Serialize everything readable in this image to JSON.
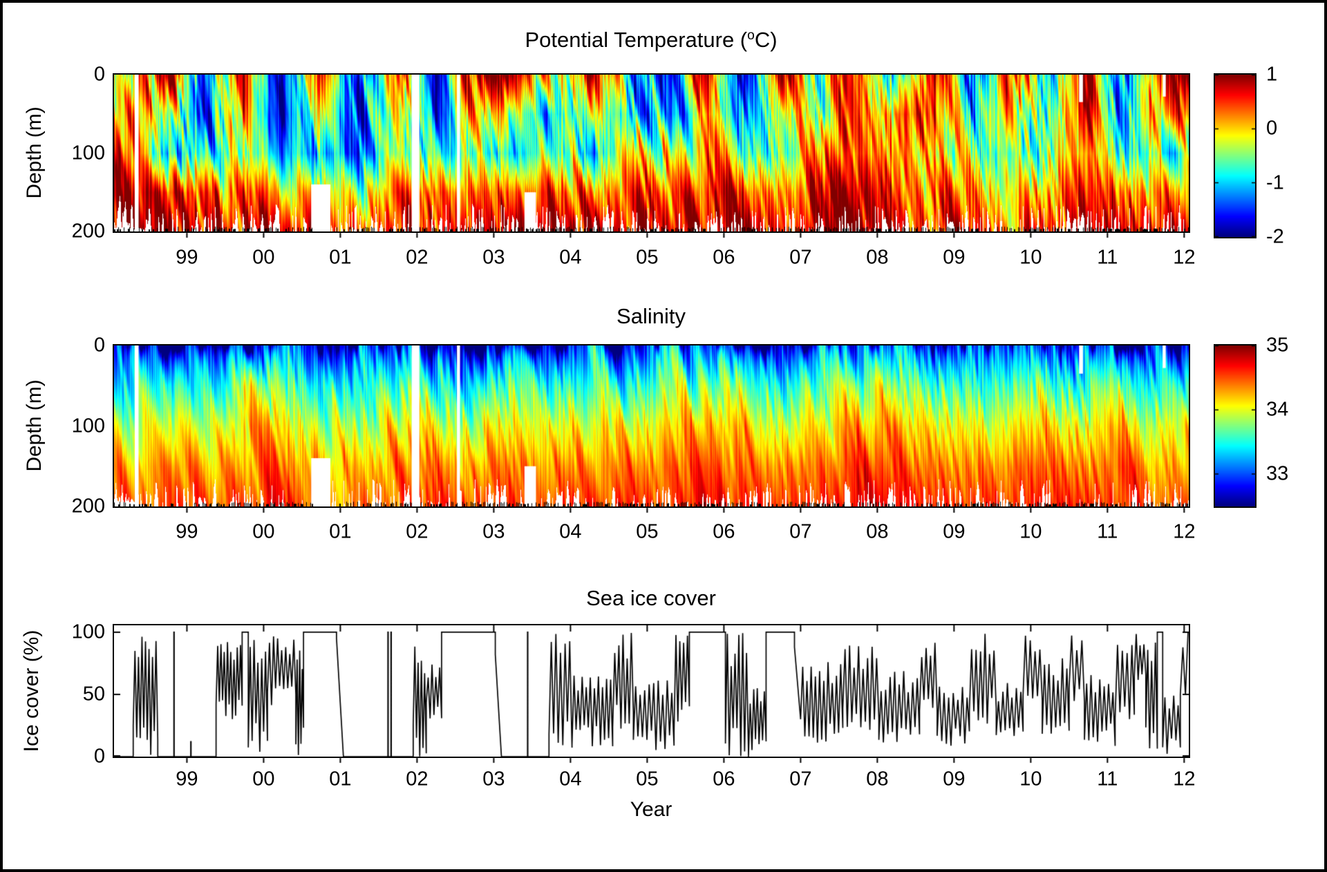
{
  "figure": {
    "background": "#ffffff",
    "frame_color": "#000000",
    "text_color": "#000000"
  },
  "chart_data": [
    {
      "id": "potential-temperature",
      "type": "heatmap",
      "title": {
        "pre": "Potential Temperature (",
        "sup": "o",
        "post": "C)"
      },
      "ylabel": "Depth (m)",
      "x_range": [
        1998.05,
        2012.06
      ],
      "ylim": [
        0,
        200
      ],
      "yticks": {
        "values": [
          0,
          100,
          200
        ],
        "labels": [
          "0",
          "100",
          "200"
        ]
      },
      "xticks": {
        "values": [
          1999,
          2000,
          2001,
          2002,
          2003,
          2004,
          2005,
          2006,
          2007,
          2008,
          2009,
          2010,
          2011,
          2012
        ],
        "labels": [
          "99",
          "00",
          "01",
          "02",
          "03",
          "04",
          "05",
          "06",
          "07",
          "08",
          "09",
          "10",
          "11",
          "12"
        ]
      },
      "colormap": "jet",
      "clim": [
        -2,
        1
      ],
      "colorbar_ticks": {
        "values": [
          1,
          0,
          -1,
          -2
        ],
        "labels": [
          "1",
          "0",
          "-1",
          "-2"
        ]
      },
      "grid": {
        "depths": [
          0,
          50,
          100,
          150,
          200
        ],
        "times": [
          1998.25,
          1998.75,
          1999.25,
          1999.75,
          2000.25,
          2000.75,
          2001.25,
          2001.75,
          2002.25,
          2002.75,
          2003.25,
          2003.75,
          2004.25,
          2004.75,
          2005.25,
          2005.75,
          2006.25,
          2006.75,
          2007.25,
          2007.75,
          2008.25,
          2008.75,
          2009.25,
          2009.75,
          2010.25,
          2010.75,
          2011.25,
          2011.75
        ],
        "values": [
          [
            -0.5,
            0.8,
            -1.7,
            0.9,
            -1.8,
            0.8,
            -1.8,
            0.9,
            -1.5,
            0.9,
            1.0,
            -0.5,
            1.0,
            -0.8,
            -1.5,
            0.6,
            -1.5,
            0.8,
            -1.0,
            1.0,
            -1.2,
            0.9,
            -1.5,
            1.0,
            -1.5,
            1.0,
            -1.7,
            1.0
          ],
          [
            0.0,
            -0.5,
            -1.5,
            0.2,
            -1.6,
            0.0,
            -1.7,
            0.3,
            -1.2,
            0.1,
            -0.3,
            -1.2,
            0.2,
            -1.0,
            -1.2,
            -0.2,
            -1.0,
            0.0,
            -0.8,
            0.5,
            0.3,
            0.4,
            -0.8,
            0.3,
            -1.0,
            0.6,
            -1.2,
            0.4
          ],
          [
            0.3,
            -1.2,
            -0.8,
            -0.5,
            -0.9,
            -0.8,
            -1.5,
            -0.2,
            -0.5,
            -0.6,
            -1.0,
            -0.5,
            -0.8,
            0.0,
            -0.3,
            0.2,
            -0.5,
            -0.3,
            0.0,
            0.2,
            0.5,
            -0.2,
            -0.3,
            -0.5,
            -0.5,
            0.0,
            -0.6,
            -0.8
          ],
          [
            0.6,
            0.5,
            0.3,
            0.4,
            0.0,
            0.3,
            -0.5,
            0.5,
            0.6,
            0.4,
            0.2,
            0.5,
            0.3,
            0.6,
            0.5,
            0.7,
            0.4,
            0.5,
            0.6,
            0.7,
            0.6,
            0.3,
            0.2,
            0.0,
            0.2,
            0.4,
            0.3,
            0.2
          ],
          [
            0.8,
            0.8,
            0.7,
            0.8,
            0.7,
            0.8,
            0.3,
            0.6,
            0.9,
            0.9,
            0.8,
            0.9,
            0.9,
            0.9,
            0.9,
            0.9,
            0.8,
            0.8,
            0.9,
            0.9,
            0.7,
            0.6,
            0.5,
            0.4,
            0.6,
            0.7,
            0.7,
            0.8
          ]
        ]
      },
      "gaps": [
        {
          "t1": 1998.32,
          "t2": 1998.37,
          "d1": 0,
          "d2": 200
        },
        {
          "t1": 2000.62,
          "t2": 2000.87,
          "d1": 140,
          "d2": 200
        },
        {
          "t1": 2001.93,
          "t2": 2002.03,
          "d1": 0,
          "d2": 200
        },
        {
          "t1": 2002.52,
          "t2": 2002.56,
          "d1": 0,
          "d2": 200
        },
        {
          "t1": 2003.4,
          "t2": 2003.55,
          "d1": 150,
          "d2": 200
        },
        {
          "t1": 2010.63,
          "t2": 2010.68,
          "d1": 0,
          "d2": 35
        },
        {
          "t1": 2011.72,
          "t2": 2011.76,
          "d1": 0,
          "d2": 28
        }
      ]
    },
    {
      "id": "salinity",
      "type": "heatmap",
      "title": "Salinity",
      "ylabel": "Depth (m)",
      "x_range": [
        1998.05,
        2012.06
      ],
      "ylim": [
        0,
        200
      ],
      "yticks": {
        "values": [
          0,
          100,
          200
        ],
        "labels": [
          "0",
          "100",
          "200"
        ]
      },
      "xticks": {
        "values": [
          1999,
          2000,
          2001,
          2002,
          2003,
          2004,
          2005,
          2006,
          2007,
          2008,
          2009,
          2010,
          2011,
          2012
        ],
        "labels": [
          "99",
          "00",
          "01",
          "02",
          "03",
          "04",
          "05",
          "06",
          "07",
          "08",
          "09",
          "10",
          "11",
          "12"
        ]
      },
      "colormap": "jet",
      "clim": [
        32.5,
        35
      ],
      "colorbar_ticks": {
        "values": [
          35,
          34,
          33
        ],
        "labels": [
          "35",
          "34",
          "33"
        ]
      },
      "grid": {
        "depths": [
          0,
          50,
          100,
          150,
          200
        ],
        "times": [
          1998.25,
          1998.75,
          1999.25,
          1999.75,
          2000.25,
          2000.75,
          2001.25,
          2001.75,
          2002.25,
          2002.75,
          2003.25,
          2003.75,
          2004.25,
          2004.75,
          2005.25,
          2005.75,
          2006.25,
          2006.75,
          2007.25,
          2007.75,
          2008.25,
          2008.75,
          2009.25,
          2009.75,
          2010.25,
          2010.75,
          2011.25,
          2011.75
        ],
        "values": [
          [
            33.2,
            32.6,
            33.4,
            32.8,
            33.5,
            32.7,
            33.3,
            32.9,
            33.2,
            32.6,
            33.4,
            32.8,
            33.3,
            32.9,
            33.4,
            33.0,
            33.3,
            32.8,
            33.2,
            33.0,
            33.4,
            32.9,
            33.3,
            32.8,
            33.2,
            32.9,
            33.3,
            32.8
          ],
          [
            33.6,
            33.4,
            33.6,
            33.8,
            33.9,
            33.5,
            33.6,
            33.6,
            33.7,
            33.4,
            33.8,
            33.5,
            33.7,
            33.6,
            33.8,
            33.7,
            33.8,
            33.5,
            33.7,
            33.8,
            33.9,
            33.6,
            33.7,
            33.5,
            33.7,
            33.6,
            33.8,
            33.5
          ],
          [
            34.0,
            33.9,
            34.0,
            34.2,
            34.2,
            34.0,
            33.9,
            34.1,
            34.1,
            34.0,
            34.1,
            34.0,
            34.1,
            34.1,
            34.2,
            34.2,
            34.2,
            34.0,
            34.1,
            34.2,
            34.3,
            34.1,
            34.1,
            34.0,
            34.1,
            34.1,
            34.2,
            34.0
          ],
          [
            34.3,
            34.3,
            34.3,
            34.4,
            34.4,
            34.4,
            34.2,
            34.4,
            34.4,
            34.4,
            34.4,
            34.3,
            34.4,
            34.4,
            34.5,
            34.5,
            34.4,
            34.4,
            34.4,
            34.5,
            34.5,
            34.4,
            34.4,
            34.4,
            34.4,
            34.4,
            34.5,
            34.3
          ],
          [
            34.5,
            34.5,
            34.5,
            34.6,
            34.6,
            34.5,
            34.4,
            34.5,
            34.6,
            34.6,
            34.6,
            34.5,
            34.6,
            34.6,
            34.6,
            34.7,
            34.6,
            34.6,
            34.6,
            34.7,
            34.7,
            34.6,
            34.6,
            34.6,
            34.6,
            34.6,
            34.6,
            34.5
          ]
        ]
      },
      "gaps": [
        {
          "t1": 1998.32,
          "t2": 1998.37,
          "d1": 0,
          "d2": 200
        },
        {
          "t1": 2000.62,
          "t2": 2000.87,
          "d1": 140,
          "d2": 200
        },
        {
          "t1": 2001.93,
          "t2": 2002.03,
          "d1": 0,
          "d2": 200
        },
        {
          "t1": 2002.52,
          "t2": 2002.56,
          "d1": 0,
          "d2": 200
        },
        {
          "t1": 2003.4,
          "t2": 2003.55,
          "d1": 150,
          "d2": 200
        },
        {
          "t1": 2010.63,
          "t2": 2010.68,
          "d1": 0,
          "d2": 35
        },
        {
          "t1": 2011.72,
          "t2": 2011.76,
          "d1": 0,
          "d2": 28
        }
      ]
    },
    {
      "id": "sea-ice-cover",
      "type": "line",
      "title": "Sea ice cover",
      "ylabel": "Ice cover (%)",
      "xlabel": "Year",
      "x_range": [
        1998.05,
        2012.06
      ],
      "ylim": [
        0,
        105.5
      ],
      "yticks": {
        "values": [
          100,
          50,
          0
        ],
        "labels": [
          "100",
          "50",
          "0"
        ]
      },
      "xticks": {
        "values": [
          1999,
          2000,
          2001,
          2002,
          2003,
          2004,
          2005,
          2006,
          2007,
          2008,
          2009,
          2010,
          2011,
          2012
        ],
        "labels": [
          "99",
          "00",
          "01",
          "02",
          "03",
          "04",
          "05",
          "06",
          "07",
          "08",
          "09",
          "10",
          "11",
          "12"
        ]
      },
      "line_color": "#000000",
      "segments": [
        {
          "k": "flat",
          "a": 1998.055,
          "b": 1998.3,
          "v": 0
        },
        {
          "k": "osc",
          "a": 1998.3,
          "b": 1998.62,
          "min": 0,
          "max": 100,
          "n": 14
        },
        {
          "k": "flat",
          "a": 1998.62,
          "b": 1998.8,
          "v": 0
        },
        {
          "k": "spike",
          "a": 1998.83,
          "v": 100
        },
        {
          "k": "flat",
          "a": 1998.85,
          "b": 1999.03,
          "v": 0
        },
        {
          "k": "spike",
          "a": 1999.05,
          "v": 12
        },
        {
          "k": "flat",
          "a": 1999.07,
          "b": 1999.38,
          "v": 0
        },
        {
          "k": "osc",
          "a": 1999.38,
          "b": 1999.72,
          "min": 25,
          "max": 100,
          "n": 16
        },
        {
          "k": "flat",
          "a": 1999.72,
          "b": 1999.8,
          "v": 100
        },
        {
          "k": "osc",
          "a": 1999.8,
          "b": 2000.05,
          "min": 0,
          "max": 100,
          "n": 10
        },
        {
          "k": "osc",
          "a": 2000.05,
          "b": 2000.42,
          "min": 40,
          "max": 100,
          "n": 14
        },
        {
          "k": "osc",
          "a": 2000.42,
          "b": 2000.52,
          "min": 0,
          "max": 100,
          "n": 6
        },
        {
          "k": "flat",
          "a": 2000.52,
          "b": 2000.95,
          "v": 100
        },
        {
          "k": "ramp",
          "a": 2000.95,
          "b": 2001.04,
          "v1": 95,
          "v2": 0
        },
        {
          "k": "flat",
          "a": 2001.04,
          "b": 2001.6,
          "v": 0
        },
        {
          "k": "spike",
          "a": 2001.62,
          "v": 100
        },
        {
          "k": "spike",
          "a": 2001.66,
          "v": 100
        },
        {
          "k": "flat",
          "a": 2001.68,
          "b": 2001.95,
          "v": 0
        },
        {
          "k": "osc",
          "a": 2001.95,
          "b": 2002.12,
          "min": 0,
          "max": 92,
          "n": 8
        },
        {
          "k": "osc",
          "a": 2002.12,
          "b": 2002.32,
          "min": 30,
          "max": 75,
          "n": 8
        },
        {
          "k": "flat",
          "a": 2002.32,
          "b": 2003.02,
          "v": 100
        },
        {
          "k": "ramp",
          "a": 2003.02,
          "b": 2003.1,
          "v1": 82,
          "v2": 0
        },
        {
          "k": "flat",
          "a": 2003.1,
          "b": 2003.42,
          "v": 0
        },
        {
          "k": "spike",
          "a": 2003.44,
          "v": 100
        },
        {
          "k": "flat",
          "a": 2003.46,
          "b": 2003.72,
          "v": 0
        },
        {
          "k": "osc",
          "a": 2003.72,
          "b": 2004.02,
          "min": 0,
          "max": 100,
          "n": 10
        },
        {
          "k": "osc",
          "a": 2004.02,
          "b": 2004.55,
          "min": 8,
          "max": 70,
          "n": 20
        },
        {
          "k": "osc",
          "a": 2004.55,
          "b": 2004.82,
          "min": 20,
          "max": 100,
          "n": 10
        },
        {
          "k": "osc",
          "a": 2004.82,
          "b": 2005.35,
          "min": 5,
          "max": 62,
          "n": 18
        },
        {
          "k": "osc",
          "a": 2005.35,
          "b": 2005.55,
          "min": 20,
          "max": 100,
          "n": 8
        },
        {
          "k": "flat",
          "a": 2005.55,
          "b": 2006.02,
          "v": 100
        },
        {
          "k": "osc",
          "a": 2006.02,
          "b": 2006.32,
          "min": 0,
          "max": 100,
          "n": 12
        },
        {
          "k": "osc",
          "a": 2006.32,
          "b": 2006.55,
          "min": 0,
          "max": 60,
          "n": 10
        },
        {
          "k": "flat",
          "a": 2006.55,
          "b": 2006.92,
          "v": 100
        },
        {
          "k": "ramp",
          "a": 2006.92,
          "b": 2007.0,
          "v1": 88,
          "v2": 30
        },
        {
          "k": "osc",
          "a": 2007.0,
          "b": 2007.55,
          "min": 10,
          "max": 80,
          "n": 20
        },
        {
          "k": "osc",
          "a": 2007.55,
          "b": 2008.02,
          "min": 20,
          "max": 92,
          "n": 16
        },
        {
          "k": "osc",
          "a": 2008.02,
          "b": 2008.55,
          "min": 8,
          "max": 70,
          "n": 18
        },
        {
          "k": "osc",
          "a": 2008.55,
          "b": 2008.78,
          "min": 30,
          "max": 100,
          "n": 8
        },
        {
          "k": "osc",
          "a": 2008.78,
          "b": 2009.2,
          "min": 8,
          "max": 60,
          "n": 14
        },
        {
          "k": "osc",
          "a": 2009.2,
          "b": 2009.55,
          "min": 25,
          "max": 100,
          "n": 12
        },
        {
          "k": "osc",
          "a": 2009.55,
          "b": 2009.9,
          "min": 8,
          "max": 60,
          "n": 12
        },
        {
          "k": "osc",
          "a": 2009.9,
          "b": 2010.15,
          "min": 45,
          "max": 100,
          "n": 8
        },
        {
          "k": "osc",
          "a": 2010.15,
          "b": 2010.5,
          "min": 15,
          "max": 80,
          "n": 12
        },
        {
          "k": "osc",
          "a": 2010.5,
          "b": 2010.7,
          "min": 40,
          "max": 100,
          "n": 6
        },
        {
          "k": "osc",
          "a": 2010.7,
          "b": 2011.1,
          "min": 8,
          "max": 70,
          "n": 14
        },
        {
          "k": "osc",
          "a": 2011.1,
          "b": 2011.35,
          "min": 30,
          "max": 90,
          "n": 8
        },
        {
          "k": "osc",
          "a": 2011.35,
          "b": 2011.5,
          "min": 60,
          "max": 100,
          "n": 6
        },
        {
          "k": "osc",
          "a": 2011.5,
          "b": 2011.65,
          "min": 0,
          "max": 100,
          "n": 6
        },
        {
          "k": "flat",
          "a": 2011.65,
          "b": 2011.72,
          "v": 100
        },
        {
          "k": "osc",
          "a": 2011.72,
          "b": 2011.95,
          "min": 0,
          "max": 50,
          "n": 8
        },
        {
          "k": "osc",
          "a": 2011.95,
          "b": 2012.05,
          "min": 40,
          "max": 100,
          "n": 3
        }
      ]
    }
  ]
}
